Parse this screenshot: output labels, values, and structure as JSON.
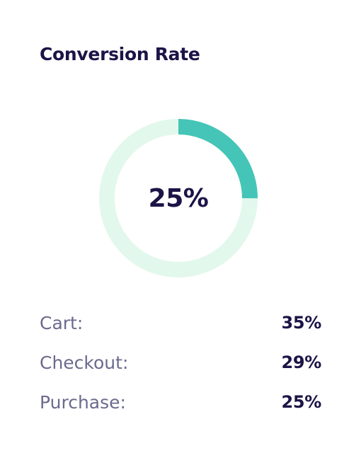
{
  "card": {
    "title": "Conversion Rate"
  },
  "gauge": {
    "value_text": "25%",
    "fraction": 0.25,
    "track_color": "#e3f8ec",
    "fill_color": "#45c5b7"
  },
  "stats": [
    {
      "label": "Cart:",
      "value": "35%"
    },
    {
      "label": "Checkout:",
      "value": "29%"
    },
    {
      "label": "Purchase:",
      "value": "25%"
    }
  ]
}
